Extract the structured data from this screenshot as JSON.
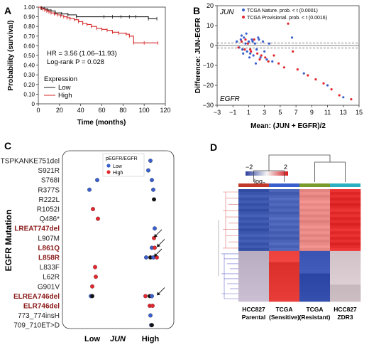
{
  "panels": {
    "A": "A",
    "B": "B",
    "C": "C",
    "D": "D"
  },
  "chart_data": [
    {
      "panel": "A",
      "type": "line",
      "xlabel": "Time (months)",
      "ylabel": "Probability (survival)",
      "xlim": [
        0,
        120
      ],
      "ylim": [
        0,
        1.0
      ],
      "xticks": [
        "0",
        "20",
        "40",
        "60",
        "80",
        "100",
        "120"
      ],
      "yticks": [
        "0",
        "0.10",
        "0.20",
        "0.30",
        "0.40",
        "0.50",
        "0.60",
        "0.70",
        "0.80",
        "0.90",
        "1.00"
      ],
      "annotations": [
        "HR = 3.56 (1.06–11.93)",
        "Log-rank P = 0.028"
      ],
      "legend_title": "Expression",
      "legend_placement": "bottom-left",
      "series": [
        {
          "name": "Low",
          "color": "#1a1a1a",
          "x": [
            0,
            3,
            6,
            9,
            12,
            16,
            22,
            28,
            36,
            62,
            70,
            78,
            86,
            92,
            104,
            112
          ],
          "y": [
            1.0,
            0.99,
            0.98,
            0.97,
            0.96,
            0.94,
            0.93,
            0.92,
            0.9,
            0.9,
            0.9,
            0.9,
            0.9,
            0.9,
            0.88,
            0.88
          ]
        },
        {
          "name": "High",
          "color": "#d62728",
          "x": [
            0,
            2,
            4,
            6,
            8,
            10,
            12,
            15,
            18,
            21,
            24,
            27,
            30,
            34,
            38,
            42,
            46,
            50,
            55,
            60,
            65,
            70,
            76,
            83,
            86,
            90,
            100,
            113
          ],
          "y": [
            1.0,
            0.99,
            0.98,
            0.97,
            0.96,
            0.95,
            0.94,
            0.93,
            0.92,
            0.91,
            0.9,
            0.89,
            0.88,
            0.87,
            0.85,
            0.83,
            0.82,
            0.8,
            0.78,
            0.77,
            0.76,
            0.74,
            0.73,
            0.72,
            0.7,
            0.63,
            0.63,
            0.63
          ]
        }
      ]
    },
    {
      "panel": "B",
      "type": "scatter",
      "xlabel": "Mean: (JUN + EGFR)/2",
      "ylabel": "Difference: JUN-EGFR",
      "xlim": [
        -3,
        15
      ],
      "ylim": [
        -30,
        20
      ],
      "xticks": [
        "−3",
        "−1",
        "1",
        "3",
        "5",
        "7",
        "9",
        "11",
        "13",
        "15"
      ],
      "yticks": [
        "−30",
        "−20",
        "−10",
        "0",
        "10",
        "20"
      ],
      "corner_top": "JUN",
      "corner_bottom": "EGFR",
      "legend_placement": "top",
      "series": [
        {
          "name": "TCGA Nature. prob. < t (0.0001)",
          "color": "#3a5fcd",
          "x": [
            -0.5,
            -0.2,
            0.0,
            0.2,
            0.4,
            0.6,
            0.8,
            1.0,
            1.2,
            1.4,
            1.6,
            1.8,
            2.0,
            2.2,
            2.5,
            2.8,
            3.0,
            3.3,
            3.6,
            4.0,
            0.1,
            0.3,
            0.7,
            1.1,
            1.5,
            1.9,
            2.3,
            6.5,
            8.0,
            11.0,
            13.0
          ],
          "y": [
            2,
            -1,
            3,
            -2,
            4,
            1,
            -3,
            2,
            -4,
            3,
            -5,
            1,
            -2,
            4,
            -6,
            2,
            -3,
            -7,
            1,
            -8,
            5,
            -4,
            6,
            -6,
            2,
            -9,
            3,
            4,
            -14,
            -20,
            -26
          ]
        },
        {
          "name": "TCGA Provisional. prob. < t (0.0016)",
          "color": "#e0282e",
          "x": [
            -0.3,
            0.1,
            0.5,
            0.9,
            1.3,
            1.7,
            2.1,
            2.6,
            3.1,
            3.5,
            4.2,
            4.8,
            5.5,
            6.0,
            6.6,
            7.2,
            8.5,
            9.5,
            10.5,
            11.5,
            12.5,
            14.0,
            0.6,
            1.2,
            2.4
          ],
          "y": [
            -1,
            2,
            -2,
            1,
            -3,
            3,
            -4,
            -5,
            -6,
            -8,
            -5,
            -9,
            -11,
            11,
            -3,
            -12,
            -15,
            -17,
            -19,
            -22,
            -25,
            -27,
            3,
            -2,
            -7
          ]
        }
      ]
    },
    {
      "panel": "C",
      "type": "scatter",
      "ylabel": "EGFR Mutation",
      "x_categories": [
        "Low",
        "JUN",
        "High"
      ],
      "legend_title": "pEGFR/EGFR",
      "legend_entries": [
        {
          "name": "Low",
          "color": "#3a5fcd"
        },
        {
          "name": "High",
          "color": "#e0282e"
        }
      ],
      "mutations": [
        {
          "label": "TSPKANKE751del",
          "highlight": false
        },
        {
          "label": "S921R",
          "highlight": false
        },
        {
          "label": "S768I",
          "highlight": false
        },
        {
          "label": "R377S",
          "highlight": false
        },
        {
          "label": "R222L",
          "highlight": false
        },
        {
          "label": "R1052I",
          "highlight": false
        },
        {
          "label": "Q486*",
          "highlight": false
        },
        {
          "label": "LREAT747del",
          "highlight": true
        },
        {
          "label": "L907M",
          "highlight": false
        },
        {
          "label": "L861Q",
          "highlight": true
        },
        {
          "label": "L858R",
          "highlight": true
        },
        {
          "label": "L833F",
          "highlight": false
        },
        {
          "label": "L62R",
          "highlight": false
        },
        {
          "label": "G901V",
          "highlight": false
        },
        {
          "label": "ELREA746del",
          "highlight": true
        },
        {
          "label": "ELR746del",
          "highlight": true
        },
        {
          "label": "773_774insH",
          "highlight": false
        },
        {
          "label": "709_710ET>D",
          "highlight": false
        }
      ],
      "points": [
        {
          "row": 0,
          "group": "High",
          "offset": 0.0,
          "color": "blue"
        },
        {
          "row": 1,
          "group": "High",
          "offset": -0.15,
          "color": "blue"
        },
        {
          "row": 2,
          "group": "Low",
          "offset": 0.35,
          "color": "blue"
        },
        {
          "row": 2,
          "group": "High",
          "offset": 0.1,
          "color": "blue"
        },
        {
          "row": 3,
          "group": "Low",
          "offset": -0.2,
          "color": "blue"
        },
        {
          "row": 3,
          "group": "High",
          "offset": 0.2,
          "color": "blue"
        },
        {
          "row": 4,
          "group": "High",
          "offset": 0.25,
          "color": "black"
        },
        {
          "row": 5,
          "group": "Low",
          "offset": 0.05,
          "color": "red"
        },
        {
          "row": 6,
          "group": "Low",
          "offset": 0.4,
          "color": "red"
        },
        {
          "row": 7,
          "group": "High",
          "offset": 0.3,
          "color": "blue"
        },
        {
          "row": 8,
          "group": "High",
          "offset": 0.25,
          "color": "red"
        },
        {
          "row": 9,
          "group": "High",
          "offset": 0.1,
          "color": "blue"
        },
        {
          "row": 9,
          "group": "High",
          "offset": 0.3,
          "color": "red"
        },
        {
          "row": 10,
          "group": "High",
          "offset": -0.3,
          "color": "blue"
        },
        {
          "row": 10,
          "group": "High",
          "offset": 0.0,
          "color": "black"
        },
        {
          "row": 10,
          "group": "High",
          "offset": 0.2,
          "color": "blue"
        },
        {
          "row": 10,
          "group": "High",
          "offset": 0.45,
          "color": "red"
        },
        {
          "row": 11,
          "group": "Low",
          "offset": 0.2,
          "color": "red"
        },
        {
          "row": 12,
          "group": "Low",
          "offset": 0.25,
          "color": "red"
        },
        {
          "row": 13,
          "group": "Low",
          "offset": 0.0,
          "color": "red"
        },
        {
          "row": 14,
          "group": "Low",
          "offset": -0.1,
          "color": "blue"
        },
        {
          "row": 14,
          "group": "Low",
          "offset": 0.0,
          "color": "black"
        },
        {
          "row": 14,
          "group": "High",
          "offset": -0.35,
          "color": "red"
        },
        {
          "row": 14,
          "group": "High",
          "offset": -0.05,
          "color": "black"
        },
        {
          "row": 14,
          "group": "High",
          "offset": 0.1,
          "color": "blue"
        },
        {
          "row": 15,
          "group": "High",
          "offset": -0.05,
          "color": "red"
        },
        {
          "row": 15,
          "group": "High",
          "offset": 0.15,
          "color": "red"
        },
        {
          "row": 16,
          "group": "High",
          "offset": 0.0,
          "color": "blue"
        },
        {
          "row": 17,
          "group": "High",
          "offset": 0.05,
          "color": "blue"
        },
        {
          "row": 17,
          "group": "High",
          "offset": 0.1,
          "color": "black"
        }
      ],
      "arrows_on_rows": [
        8,
        9,
        10,
        14
      ]
    },
    {
      "panel": "D",
      "type": "heatmap",
      "colorbar_ticks": [
        "−2",
        "2"
      ],
      "colorbar_label": "log",
      "colorbar_label_sub": "2",
      "columns": [
        {
          "line1": "HCC827",
          "line2": "Parental",
          "color": "#c0392b"
        },
        {
          "line1": "TCGA",
          "line2": "(Sensitive)",
          "color": "#3a5fcd"
        },
        {
          "line1": "TCGA",
          "line2": "(Resistant)",
          "color": "#7a9a2a"
        },
        {
          "line1": "HCC827",
          "line2": "ZDR3",
          "color": "#2ab0c0"
        }
      ],
      "rows_top": 22,
      "rows_bottom": 18
    }
  ]
}
